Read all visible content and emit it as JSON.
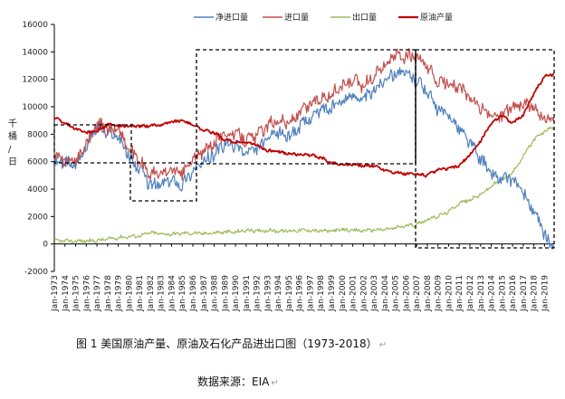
{
  "chart_data": {
    "type": "line",
    "ylabel": "千桶/日",
    "ylim": [
      -2000,
      16000
    ],
    "yticks": [
      -2000,
      0,
      2000,
      4000,
      6000,
      8000,
      10000,
      12000,
      14000,
      16000
    ],
    "xlim": [
      1973,
      2019.9
    ],
    "xticks": [
      "Jan-1973",
      "Jan-1974",
      "Jan-1975",
      "Jan-1976",
      "Jan-1977",
      "Jan-1978",
      "Jan-1979",
      "Jan-1980",
      "Jan-1981",
      "Jan-1982",
      "Jan-1983",
      "Jan-1984",
      "Jan-1985",
      "Jan-1986",
      "Jan-1987",
      "Jan-1988",
      "Jan-1989",
      "Jan-1990",
      "Jan-1991",
      "Jan-1992",
      "Jan-1993",
      "Jan-1994",
      "Jan-1995",
      "Jan-1996",
      "Jan-1997",
      "Jan-1998",
      "Jan-1999",
      "Jan-2000",
      "Jan-2001",
      "Jan-2002",
      "Jan-2003",
      "Jan-2004",
      "Jan-2005",
      "Jan-2006",
      "Jan-2007",
      "Jan-2008",
      "Jan-2009",
      "Jan-2010",
      "Jan-2011",
      "Jan-2012",
      "Jan-2013",
      "Jan-2014",
      "Jan-2015",
      "Jan-2016",
      "Jan-2017",
      "Jan-2018",
      "Jan-2019"
    ],
    "grid": false,
    "legend_position": "top",
    "series": [
      {
        "name": "净进口量",
        "color": "#4f81bd",
        "x": [
          1973,
          1974,
          1975,
          1976,
          1977,
          1978,
          1979,
          1980,
          1981,
          1982,
          1983,
          1984,
          1985,
          1986,
          1987,
          1988,
          1989,
          1990,
          1991,
          1992,
          1993,
          1994,
          1995,
          1996,
          1997,
          1998,
          1999,
          2000,
          2001,
          2002,
          2003,
          2004,
          2005,
          2006,
          2007,
          2008,
          2009,
          2010,
          2011,
          2012,
          2013,
          2014,
          2015,
          2016,
          2017,
          2018,
          2019,
          2019.5,
          2019.9
        ],
        "y": [
          6000,
          5900,
          5800,
          7100,
          8600,
          8000,
          7900,
          6400,
          5400,
          4300,
          4300,
          4700,
          4300,
          5400,
          5900,
          6600,
          7200,
          7200,
          6600,
          6900,
          7600,
          8100,
          7900,
          8500,
          9200,
          9800,
          9900,
          10400,
          10900,
          10500,
          11200,
          12100,
          12500,
          12400,
          12000,
          11100,
          9700,
          9400,
          8400,
          7400,
          6200,
          5100,
          4700,
          4800,
          3700,
          2300,
          700,
          0,
          -200
        ]
      },
      {
        "name": "进口量",
        "color": "#c0504d",
        "x": [
          1973,
          1974,
          1975,
          1976,
          1977,
          1978,
          1979,
          1980,
          1981,
          1982,
          1983,
          1984,
          1985,
          1986,
          1987,
          1988,
          1989,
          1990,
          1991,
          1992,
          1993,
          1994,
          1995,
          1996,
          1997,
          1998,
          1999,
          2000,
          2001,
          2002,
          2003,
          2004,
          2005,
          2006,
          2007,
          2008,
          2009,
          2010,
          2011,
          2012,
          2013,
          2014,
          2015,
          2016,
          2017,
          2018,
          2019,
          2019.5,
          2019.9
        ],
        "y": [
          6300,
          6100,
          6000,
          7300,
          8800,
          8400,
          8400,
          6900,
          6000,
          5100,
          5100,
          5400,
          5100,
          6200,
          6700,
          7400,
          8100,
          8000,
          7600,
          7900,
          8600,
          9100,
          8800,
          9500,
          10200,
          10700,
          10900,
          11500,
          11900,
          11500,
          12300,
          13100,
          13700,
          13700,
          13500,
          12900,
          11700,
          11800,
          11400,
          10600,
          9900,
          9300,
          9400,
          10000,
          10200,
          9900,
          9100,
          9200,
          9300
        ]
      },
      {
        "name": "出口量",
        "color": "#9bbb59",
        "x": [
          1973,
          1974,
          1975,
          1976,
          1977,
          1978,
          1979,
          1980,
          1981,
          1982,
          1983,
          1984,
          1985,
          1986,
          1987,
          1988,
          1989,
          1990,
          1991,
          1992,
          1993,
          1994,
          1995,
          1996,
          1997,
          1998,
          1999,
          2000,
          2001,
          2002,
          2003,
          2004,
          2005,
          2006,
          2007,
          2008,
          2009,
          2010,
          2011,
          2012,
          2013,
          2014,
          2015,
          2016,
          2017,
          2018,
          2019,
          2019.5,
          2019.9
        ],
        "y": [
          230,
          220,
          210,
          220,
          240,
          360,
          470,
          540,
          600,
          820,
          740,
          720,
          780,
          790,
          760,
          820,
          860,
          860,
          1000,
          950,
          1000,
          940,
          950,
          1000,
          1000,
          950,
          940,
          1040,
          970,
          980,
          1030,
          1050,
          1170,
          1320,
          1430,
          1800,
          2020,
          2350,
          2990,
          3200,
          3600,
          4200,
          4700,
          5200,
          6400,
          7600,
          8200,
          8400,
          8500
        ]
      },
      {
        "name": "原油产量",
        "color": "#c00000",
        "x": [
          1973,
          1974,
          1975,
          1976,
          1977,
          1978,
          1979,
          1980,
          1981,
          1982,
          1983,
          1984,
          1985,
          1986,
          1987,
          1988,
          1989,
          1990,
          1991,
          1992,
          1993,
          1994,
          1995,
          1996,
          1997,
          1998,
          1999,
          2000,
          2001,
          2002,
          2003,
          2004,
          2005,
          2006,
          2007,
          2008,
          2009,
          2010,
          2011,
          2012,
          2013,
          2014,
          2015,
          2016,
          2017,
          2018,
          2019,
          2019.5,
          2019.9
        ],
        "y": [
          9200,
          8800,
          8400,
          8100,
          8200,
          8700,
          8600,
          8600,
          8600,
          8600,
          8700,
          8900,
          9000,
          8700,
          8300,
          8100,
          7600,
          7400,
          7400,
          7200,
          6800,
          6700,
          6600,
          6500,
          6500,
          6300,
          5900,
          5800,
          5800,
          5700,
          5700,
          5400,
          5200,
          5100,
          5100,
          5000,
          5400,
          5500,
          5700,
          6500,
          7500,
          8800,
          9400,
          8800,
          9400,
          11000,
          12200,
          12300,
          12400
        ]
      }
    ]
  },
  "caption": "图 1  美国原油产量、原油及石化产品进出口图（1973-2018）",
  "source": "数据来源：EIA",
  "return_mark": "↵"
}
